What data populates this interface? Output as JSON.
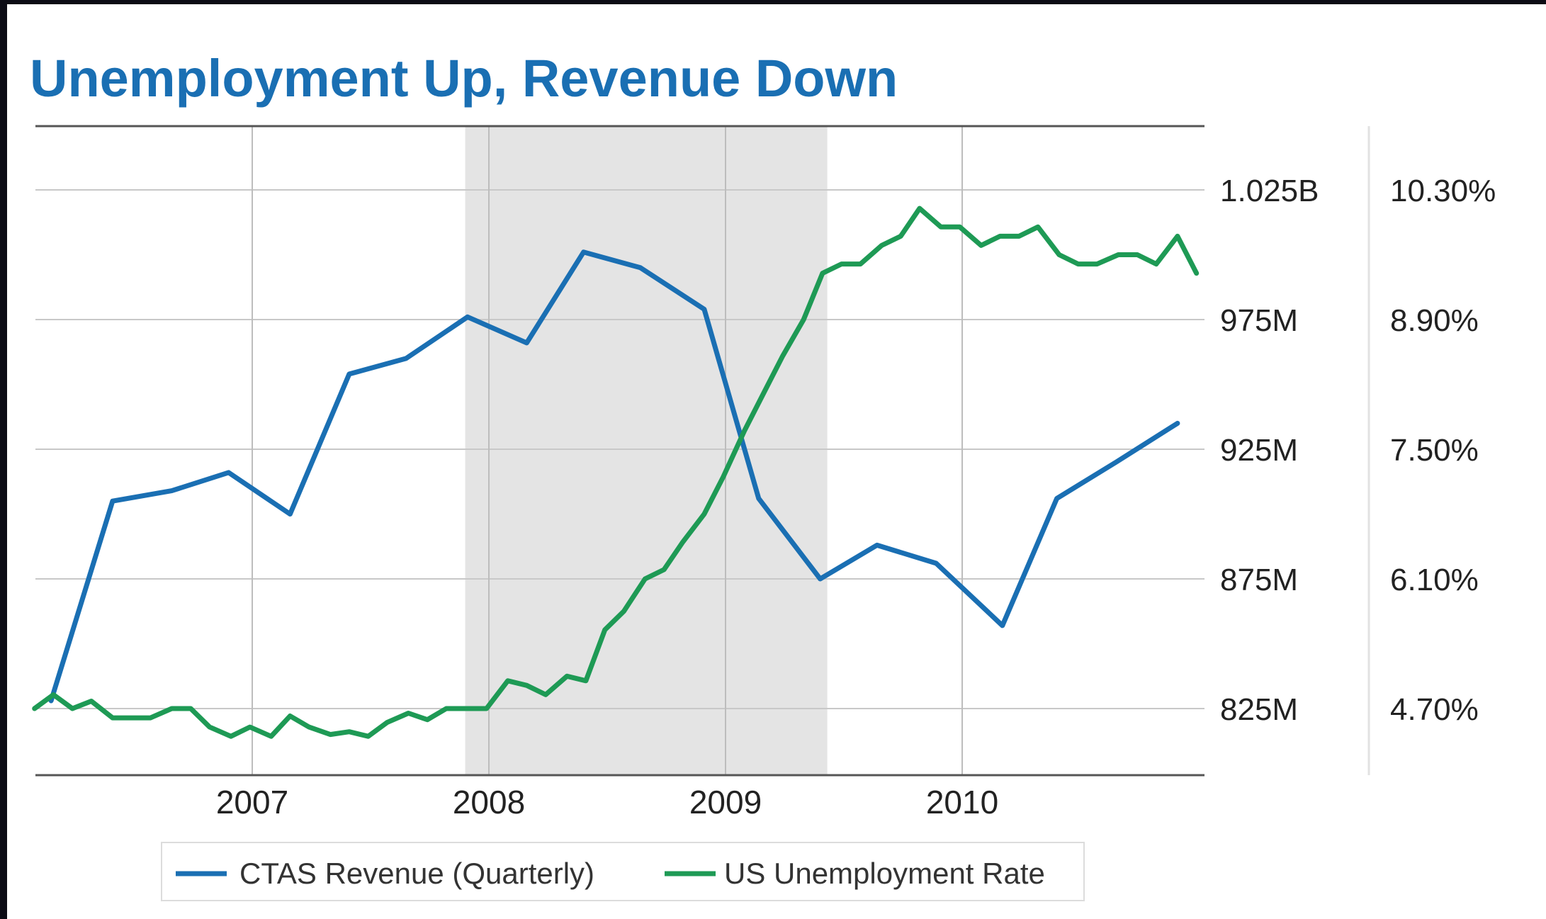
{
  "chart_data": {
    "type": "line",
    "title": "Unemployment Up, Revenue Down",
    "x_ticks": [
      "2007",
      "2008",
      "2009",
      "2010"
    ],
    "xlim": [
      2006.08,
      2011.0
    ],
    "shaded_region": [
      2007.9,
      2009.43
    ],
    "left_axis": {
      "ticks": [
        "1.025B",
        "975M",
        "925M",
        "875M",
        "825M"
      ],
      "values": [
        1025,
        975,
        925,
        875,
        825
      ],
      "unit": "M"
    },
    "right_axis": {
      "ticks": [
        "10.30%",
        "8.90%",
        "7.50%",
        "6.10%",
        "4.70%"
      ],
      "values": [
        10.3,
        8.9,
        7.5,
        6.1,
        4.7
      ]
    },
    "grid": true,
    "legend_position": "bottom",
    "colors": {
      "revenue": "#1a6fb3",
      "unemployment": "#1e9a55",
      "title": "#1a6fb3",
      "shade": "#e4e4e4"
    },
    "series": [
      {
        "name": "CTAS Revenue (Quarterly)",
        "axis": "left",
        "color": "#1a6fb3",
        "points": [
          [
            2006.15,
            828
          ],
          [
            2006.41,
            905
          ],
          [
            2006.66,
            909
          ],
          [
            2006.9,
            916
          ],
          [
            2007.16,
            900
          ],
          [
            2007.41,
            954
          ],
          [
            2007.65,
            960
          ],
          [
            2007.91,
            976
          ],
          [
            2008.16,
            966
          ],
          [
            2008.4,
            1001
          ],
          [
            2008.64,
            995
          ],
          [
            2008.91,
            979
          ],
          [
            2009.14,
            906
          ],
          [
            2009.4,
            875
          ],
          [
            2009.64,
            888
          ],
          [
            2009.89,
            881
          ],
          [
            2010.17,
            857
          ],
          [
            2010.4,
            906
          ],
          [
            2010.65,
            920
          ],
          [
            2010.91,
            935
          ]
        ]
      },
      {
        "name": "US Unemployment Rate",
        "axis": "right",
        "color": "#1e9a55",
        "points": [
          [
            2006.08,
            4.7
          ],
          [
            2006.16,
            4.85
          ],
          [
            2006.24,
            4.7
          ],
          [
            2006.32,
            4.78
          ],
          [
            2006.41,
            4.6
          ],
          [
            2006.49,
            4.6
          ],
          [
            2006.57,
            4.6
          ],
          [
            2006.66,
            4.7
          ],
          [
            2006.74,
            4.7
          ],
          [
            2006.82,
            4.5
          ],
          [
            2006.91,
            4.4
          ],
          [
            2006.99,
            4.5
          ],
          [
            2007.08,
            4.4
          ],
          [
            2007.16,
            4.62
          ],
          [
            2007.24,
            4.5
          ],
          [
            2007.33,
            4.42
          ],
          [
            2007.41,
            4.45
          ],
          [
            2007.49,
            4.4
          ],
          [
            2007.57,
            4.55
          ],
          [
            2007.66,
            4.65
          ],
          [
            2007.74,
            4.58
          ],
          [
            2007.82,
            4.7
          ],
          [
            2007.9,
            4.7
          ],
          [
            2007.99,
            4.7
          ],
          [
            2008.08,
            5.0
          ],
          [
            2008.16,
            4.95
          ],
          [
            2008.24,
            4.85
          ],
          [
            2008.33,
            5.05
          ],
          [
            2008.41,
            5.0
          ],
          [
            2008.49,
            5.55
          ],
          [
            2008.57,
            5.75
          ],
          [
            2008.66,
            6.1
          ],
          [
            2008.74,
            6.2
          ],
          [
            2008.82,
            6.5
          ],
          [
            2008.91,
            6.8
          ],
          [
            2008.99,
            7.2
          ],
          [
            2009.08,
            7.7
          ],
          [
            2009.16,
            8.1
          ],
          [
            2009.24,
            8.5
          ],
          [
            2009.33,
            8.9
          ],
          [
            2009.41,
            9.4
          ],
          [
            2009.49,
            9.5
          ],
          [
            2009.57,
            9.5
          ],
          [
            2009.66,
            9.7
          ],
          [
            2009.74,
            9.8
          ],
          [
            2009.82,
            10.1
          ],
          [
            2009.91,
            9.9
          ],
          [
            2009.99,
            9.9
          ],
          [
            2010.08,
            9.7
          ],
          [
            2010.16,
            9.8
          ],
          [
            2010.24,
            9.8
          ],
          [
            2010.32,
            9.9
          ],
          [
            2010.41,
            9.6
          ],
          [
            2010.49,
            9.5
          ],
          [
            2010.57,
            9.5
          ],
          [
            2010.66,
            9.6
          ],
          [
            2010.74,
            9.6
          ],
          [
            2010.82,
            9.5
          ],
          [
            2010.91,
            9.8
          ],
          [
            2010.99,
            9.4
          ]
        ]
      }
    ]
  }
}
